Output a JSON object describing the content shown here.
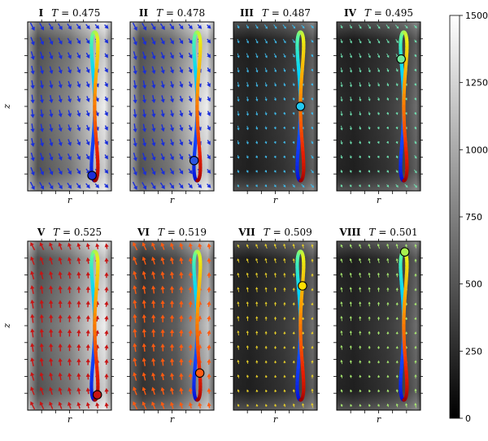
{
  "chart_data": {
    "type": "heatmap",
    "layout": "2 rows x 4 panels with shared colorbar",
    "xlabel": "r",
    "ylabel": "z",
    "colormap": "greyscale",
    "colorbar": {
      "range": [
        0,
        1500
      ],
      "ticks": [
        0,
        250,
        500,
        750,
        1000,
        1250,
        1500
      ],
      "tick_labels": [
        "0",
        "250",
        "500",
        "750",
        "1000",
        "1250",
        "1500"
      ]
    },
    "curve": "figure-eight loop colored by phase (blue → cyan → green → yellow → orange → red)",
    "panels": [
      {
        "id": "I",
        "T": "0.475",
        "arrow_color": "#1a2ed9",
        "marker_color": "#1a2ed9",
        "marker_phase": 0.06,
        "arrow_dir": "down-right",
        "field_level": "high"
      },
      {
        "id": "II",
        "T": "0.478",
        "arrow_color": "#1a2ed9",
        "marker_color": "#2a55e0",
        "marker_phase": 0.12,
        "arrow_dir": "down-right",
        "field_level": "high"
      },
      {
        "id": "III",
        "T": "0.487",
        "arrow_color": "#3fb8e8",
        "marker_color": "#22c8f0",
        "marker_phase": 0.25,
        "arrow_dir": "down-right",
        "field_level": "low"
      },
      {
        "id": "IV",
        "T": "0.495",
        "arrow_color": "#6fe0b0",
        "marker_color": "#6fe89a",
        "marker_phase": 0.36,
        "arrow_dir": "down-right",
        "field_level": "low"
      },
      {
        "id": "V",
        "T": "0.525",
        "arrow_color": "#c81414",
        "marker_color": "#c81414",
        "marker_phase": 0.94,
        "arrow_dir": "up-left",
        "field_level": "high"
      },
      {
        "id": "VI",
        "T": "0.519",
        "arrow_color": "#ff5a10",
        "marker_color": "#ff5a10",
        "marker_phase": 0.86,
        "arrow_dir": "up-left",
        "field_level": "mid"
      },
      {
        "id": "VII",
        "T": "0.509",
        "arrow_color": "#e8d028",
        "marker_color": "#ffe000",
        "marker_phase": 0.66,
        "arrow_dir": "up-left",
        "field_level": "low"
      },
      {
        "id": "VIII",
        "T": "0.501",
        "arrow_color": "#a8ea70",
        "marker_color": "#a8f050",
        "marker_phase": 0.52,
        "arrow_dir": "up-left",
        "field_level": "low"
      }
    ]
  }
}
